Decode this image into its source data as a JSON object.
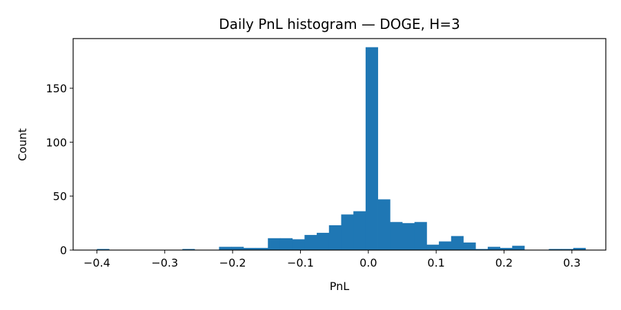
{
  "chart_data": {
    "type": "bar",
    "title": "Daily PnL histogram — DOGE, H=3",
    "xlabel": "PnL",
    "ylabel": "Count",
    "xlim": [
      -0.435,
      0.35
    ],
    "ylim": [
      0,
      196
    ],
    "x_ticks": [
      -0.4,
      -0.3,
      -0.2,
      -0.1,
      0.0,
      0.1,
      0.2,
      0.3
    ],
    "x_tick_labels": [
      "−0.4",
      "−0.3",
      "−0.2",
      "−0.1",
      "0.0",
      "0.1",
      "0.2",
      "0.3"
    ],
    "y_ticks": [
      0,
      50,
      100,
      150
    ],
    "y_tick_labels": [
      "0",
      "50",
      "100",
      "150"
    ],
    "bar_color": "#1f77b4",
    "grid": false,
    "bins": [
      {
        "left": -0.4,
        "right": -0.382,
        "count": 1
      },
      {
        "left": -0.382,
        "right": -0.364,
        "count": 0
      },
      {
        "left": -0.364,
        "right": -0.346,
        "count": 0
      },
      {
        "left": -0.346,
        "right": -0.328,
        "count": 0
      },
      {
        "left": -0.328,
        "right": -0.31,
        "count": 0
      },
      {
        "left": -0.31,
        "right": -0.292,
        "count": 0
      },
      {
        "left": -0.292,
        "right": -0.274,
        "count": 0
      },
      {
        "left": -0.274,
        "right": -0.256,
        "count": 1
      },
      {
        "left": -0.256,
        "right": -0.238,
        "count": 0
      },
      {
        "left": -0.238,
        "right": -0.22,
        "count": 0
      },
      {
        "left": -0.22,
        "right": -0.202,
        "count": 3
      },
      {
        "left": -0.202,
        "right": -0.184,
        "count": 3
      },
      {
        "left": -0.184,
        "right": -0.166,
        "count": 2
      },
      {
        "left": -0.166,
        "right": -0.148,
        "count": 2
      },
      {
        "left": -0.148,
        "right": -0.13,
        "count": 11
      },
      {
        "left": -0.13,
        "right": -0.112,
        "count": 11
      },
      {
        "left": -0.112,
        "right": -0.094,
        "count": 10
      },
      {
        "left": -0.094,
        "right": -0.076,
        "count": 14
      },
      {
        "left": -0.076,
        "right": -0.058,
        "count": 16
      },
      {
        "left": -0.058,
        "right": -0.04,
        "count": 23
      },
      {
        "left": -0.04,
        "right": -0.022,
        "count": 33
      },
      {
        "left": -0.022,
        "right": -0.004,
        "count": 36
      },
      {
        "left": -0.004,
        "right": 0.014,
        "count": 188
      },
      {
        "left": 0.014,
        "right": 0.032,
        "count": 47
      },
      {
        "left": 0.032,
        "right": 0.05,
        "count": 26
      },
      {
        "left": 0.05,
        "right": 0.068,
        "count": 25
      },
      {
        "left": 0.068,
        "right": 0.086,
        "count": 26
      },
      {
        "left": 0.086,
        "right": 0.104,
        "count": 5
      },
      {
        "left": 0.104,
        "right": 0.122,
        "count": 8
      },
      {
        "left": 0.122,
        "right": 0.14,
        "count": 13
      },
      {
        "left": 0.14,
        "right": 0.158,
        "count": 7
      },
      {
        "left": 0.158,
        "right": 0.176,
        "count": 1
      },
      {
        "left": 0.176,
        "right": 0.194,
        "count": 3
      },
      {
        "left": 0.194,
        "right": 0.212,
        "count": 2
      },
      {
        "left": 0.212,
        "right": 0.23,
        "count": 4
      },
      {
        "left": 0.23,
        "right": 0.248,
        "count": 0
      },
      {
        "left": 0.248,
        "right": 0.266,
        "count": 0
      },
      {
        "left": 0.266,
        "right": 0.284,
        "count": 1
      },
      {
        "left": 0.284,
        "right": 0.302,
        "count": 1
      },
      {
        "left": 0.302,
        "right": 0.32,
        "count": 2
      }
    ]
  }
}
